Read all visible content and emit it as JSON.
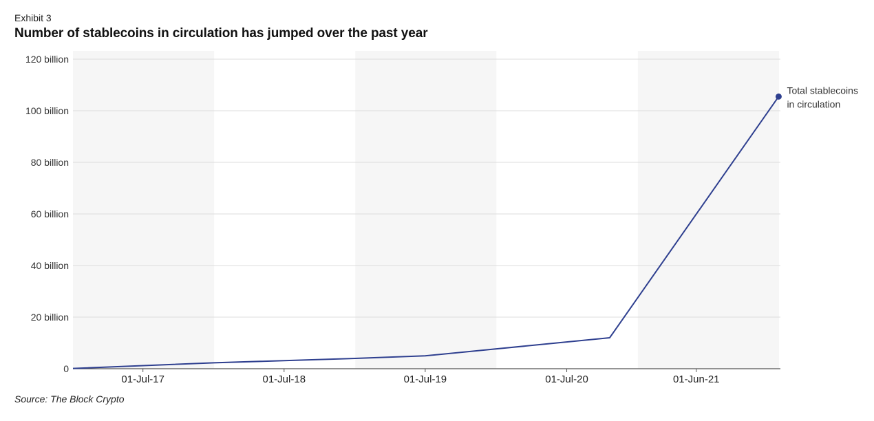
{
  "header": {
    "exhibit": "Exhibit 3",
    "title": "Number of stablecoins in circulation has jumped over the past year"
  },
  "footer": {
    "source": "Source: The Block Crypto"
  },
  "colors": {
    "line": "#2e3f8f",
    "band": "#f6f6f6",
    "grid": "#dcdcdc",
    "axis": "#555555"
  },
  "chart_data": {
    "type": "line",
    "title": "Number of stablecoins in circulation has jumped over the past year",
    "xlabel": "",
    "ylabel": "",
    "ylim": [
      0,
      120000000000
    ],
    "yticks": [
      {
        "value": 0,
        "label": "0"
      },
      {
        "value": 20000000000,
        "label": "20 billion"
      },
      {
        "value": 40000000000,
        "label": "40 billion"
      },
      {
        "value": 60000000000,
        "label": "60 billion"
      },
      {
        "value": 80000000000,
        "label": "80 billion"
      },
      {
        "value": 100000000000,
        "label": "100 billion"
      },
      {
        "value": 120000000000,
        "label": "120 billion"
      }
    ],
    "xlim": [
      "2017-01-01",
      "2022-01-01"
    ],
    "xticks": [
      {
        "date": "2017-07-01",
        "label": "01-Jul-17"
      },
      {
        "date": "2018-07-01",
        "label": "01-Jul-18"
      },
      {
        "date": "2019-07-01",
        "label": "01-Jul-19"
      },
      {
        "date": "2020-07-01",
        "label": "01-Jul-20"
      },
      {
        "date": "2021-06-01",
        "label": "01-Jun-21"
      }
    ],
    "bands": [
      {
        "from": "2017-01-01",
        "to": "2018-01-01"
      },
      {
        "from": "2019-01-01",
        "to": "2020-01-01"
      },
      {
        "from": "2021-01-01",
        "to": "2022-01-01"
      }
    ],
    "grid": true,
    "series": [
      {
        "name": "Total stablecoins in circulation",
        "name_lines": [
          "Total stablecoins",
          "in circulation"
        ],
        "points": [
          {
            "x": "2017-01-01",
            "y": 100000000
          },
          {
            "x": "2018-01-01",
            "y": 2300000000
          },
          {
            "x": "2019-01-01",
            "y": 4000000000
          },
          {
            "x": "2019-07-01",
            "y": 5000000000
          },
          {
            "x": "2020-10-20",
            "y": 12000000000
          },
          {
            "x": "2021-12-31",
            "y": 105500000000
          }
        ]
      }
    ]
  }
}
